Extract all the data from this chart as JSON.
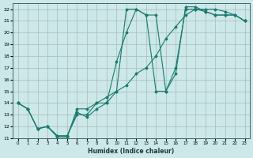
{
  "xlabel": "Humidex (Indice chaleur)",
  "xlim": [
    -0.5,
    23.5
  ],
  "ylim": [
    11,
    22.5
  ],
  "xticks": [
    0,
    1,
    2,
    3,
    4,
    5,
    6,
    7,
    8,
    9,
    10,
    11,
    12,
    13,
    14,
    15,
    16,
    17,
    18,
    19,
    20,
    21,
    22,
    23
  ],
  "yticks": [
    11,
    12,
    13,
    14,
    15,
    16,
    17,
    18,
    19,
    20,
    21,
    22
  ],
  "background_color": "#cce8e8",
  "grid_color": "#aababa",
  "line_color": "#1a7a6e",
  "lines": [
    {
      "x": [
        0,
        1,
        2,
        3,
        4,
        5,
        6,
        7,
        8,
        9,
        10,
        11,
        12,
        13,
        14,
        15,
        16,
        17,
        18,
        19,
        20,
        21,
        22,
        23
      ],
      "y": [
        14.0,
        13.5,
        11.8,
        12.0,
        11.2,
        11.2,
        13.2,
        12.8,
        13.5,
        14.0,
        17.5,
        20.0,
        22.0,
        21.5,
        15.0,
        15.0,
        16.5,
        22.2,
        22.2,
        21.8,
        21.5,
        21.5,
        21.5,
        21.0
      ]
    },
    {
      "x": [
        0,
        1,
        2,
        3,
        4,
        5,
        6,
        7,
        8,
        9,
        10,
        11,
        12,
        13,
        14,
        15,
        16,
        17,
        18,
        19,
        20,
        21,
        22,
        23
      ],
      "y": [
        14.0,
        13.5,
        11.8,
        12.0,
        11.2,
        11.2,
        13.0,
        13.0,
        14.0,
        14.0,
        15.0,
        22.0,
        22.0,
        21.5,
        21.5,
        15.0,
        17.0,
        22.0,
        22.0,
        21.8,
        21.5,
        21.5,
        21.5,
        21.0
      ]
    },
    {
      "x": [
        0,
        1,
        2,
        3,
        4,
        5,
        6,
        7,
        8,
        9,
        10,
        11,
        12,
        13,
        14,
        15,
        16,
        17,
        18,
        19,
        20,
        21,
        22,
        23
      ],
      "y": [
        14.0,
        13.5,
        11.8,
        12.0,
        11.1,
        11.1,
        13.5,
        13.5,
        14.0,
        14.5,
        15.0,
        15.5,
        16.5,
        17.0,
        18.0,
        19.5,
        20.5,
        21.5,
        22.0,
        22.0,
        22.0,
        21.8,
        21.5,
        21.0
      ]
    }
  ]
}
